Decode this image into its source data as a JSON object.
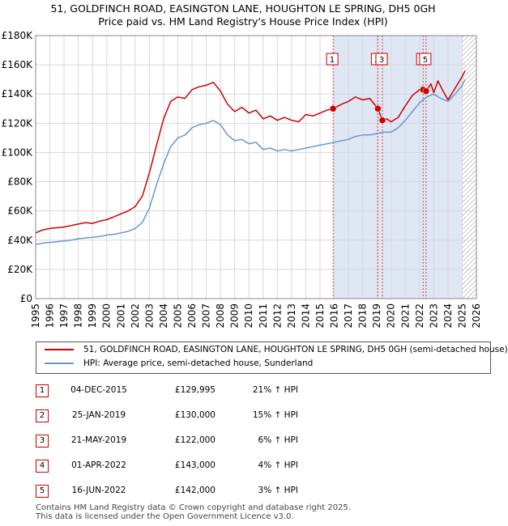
{
  "header": {
    "title": "51, GOLDFINCH ROAD, EASINGTON LANE, HOUGHTON LE SPRING, DH5 0GH",
    "subtitle": "Price paid vs. HM Land Registry's House Price Index (HPI)"
  },
  "legend": {
    "property": "51, GOLDFINCH ROAD, EASINGTON LANE, HOUGHTON LE SPRING, DH5 0GH (semi-detached house)",
    "hpi": "HPI: Average price, semi-detached house, Sunderland"
  },
  "colors": {
    "property": "#cc0000",
    "hpi": "#6699cc",
    "shade": "#dfe6f4",
    "grid": "#d8d8d8",
    "vline": "#cc0000"
  },
  "transactions": [
    {
      "num": "1",
      "date": "04-DEC-2015",
      "price": "£129,995",
      "hpi": "21% ↑ HPI"
    },
    {
      "num": "2",
      "date": "25-JAN-2019",
      "price": "£130,000",
      "hpi": "15% ↑ HPI"
    },
    {
      "num": "3",
      "date": "21-MAY-2019",
      "price": "£122,000",
      "hpi": "6% ↑ HPI"
    },
    {
      "num": "4",
      "date": "01-APR-2022",
      "price": "£143,000",
      "hpi": "4% ↑ HPI"
    },
    {
      "num": "5",
      "date": "16-JUN-2022",
      "price": "£142,000",
      "hpi": "3% ↑ HPI"
    }
  ],
  "footer": {
    "line1": "Contains HM Land Registry data © Crown copyright and database right 2025.",
    "line2": "This data is licensed under the Open Government Licence v3.0."
  },
  "chart_data": {
    "type": "line",
    "xlim": [
      1995,
      2026
    ],
    "ylim": [
      0,
      180000
    ],
    "grid": true,
    "x_ticks": [
      1995,
      1996,
      1997,
      1998,
      1999,
      2000,
      2001,
      2002,
      2003,
      2004,
      2005,
      2006,
      2007,
      2008,
      2009,
      2010,
      2011,
      2012,
      2013,
      2014,
      2015,
      2016,
      2017,
      2018,
      2019,
      2020,
      2021,
      2022,
      2023,
      2024,
      2025,
      2026
    ],
    "y_ticks": [
      0,
      20000,
      40000,
      60000,
      80000,
      100000,
      120000,
      140000,
      160000,
      180000
    ],
    "y_tick_labels": [
      "£0",
      "£20K",
      "£40K",
      "£60K",
      "£80K",
      "£100K",
      "£120K",
      "£140K",
      "£160K",
      "£180K"
    ],
    "shaded_range": [
      2015.92,
      2025.0
    ],
    "hatched_from": 2025.0,
    "markers": [
      {
        "label": "1",
        "x": 2015.92,
        "y": 129995
      },
      {
        "label": "2",
        "x": 2019.07,
        "y": 130000
      },
      {
        "label": "3",
        "x": 2019.39,
        "y": 122000
      },
      {
        "label": "4",
        "x": 2022.25,
        "y": 143000
      },
      {
        "label": "5",
        "x": 2022.46,
        "y": 142000
      }
    ],
    "series": [
      {
        "name": "51, GOLDFINCH ROAD, EASINGTON LANE, HOUGHTON LE SPRING, DH5 0GH (semi-detached house)",
        "x": [
          1995.0,
          1995.5,
          1996.0,
          1996.5,
          1997.0,
          1997.5,
          1998.0,
          1998.5,
          1999.0,
          1999.5,
          2000.0,
          2000.5,
          2001.0,
          2001.5,
          2002.0,
          2002.5,
          2003.0,
          2003.5,
          2004.0,
          2004.5,
          2005.0,
          2005.5,
          2006.0,
          2006.5,
          2007.0,
          2007.5,
          2008.0,
          2008.5,
          2009.0,
          2009.5,
          2010.0,
          2010.5,
          2011.0,
          2011.5,
          2012.0,
          2012.5,
          2013.0,
          2013.5,
          2014.0,
          2014.5,
          2015.0,
          2015.5,
          2015.92,
          2016.5,
          2017.0,
          2017.5,
          2018.0,
          2018.5,
          2019.07,
          2019.39,
          2019.7,
          2020.0,
          2020.5,
          2021.0,
          2021.5,
          2022.0,
          2022.25,
          2022.46,
          2022.8,
          2023.0,
          2023.3,
          2023.6,
          2024.0,
          2024.5,
          2025.0,
          2025.2
        ],
        "values": [
          45000,
          47000,
          48000,
          48500,
          49000,
          50000,
          51000,
          52000,
          51500,
          53000,
          54000,
          56000,
          58000,
          60000,
          63000,
          70000,
          86000,
          105000,
          123000,
          135000,
          138000,
          137000,
          143000,
          145000,
          146000,
          148000,
          142000,
          133000,
          128000,
          131000,
          127000,
          129000,
          123000,
          125000,
          122000,
          124000,
          122000,
          121000,
          126000,
          125000,
          127000,
          129000,
          129995,
          133000,
          135000,
          138000,
          136000,
          137000,
          130000,
          122000,
          123000,
          121000,
          124000,
          132000,
          139000,
          143000,
          143000,
          142000,
          147000,
          141000,
          149000,
          143000,
          136000,
          144000,
          152000,
          156000
        ]
      },
      {
        "name": "HPI: Average price, semi-detached house, Sunderland",
        "x": [
          1995.0,
          1995.5,
          1996.0,
          1996.5,
          1997.0,
          1997.5,
          1998.0,
          1998.5,
          1999.0,
          1999.5,
          2000.0,
          2000.5,
          2001.0,
          2001.5,
          2002.0,
          2002.5,
          2003.0,
          2003.5,
          2004.0,
          2004.5,
          2005.0,
          2005.5,
          2006.0,
          2006.5,
          2007.0,
          2007.5,
          2008.0,
          2008.5,
          2009.0,
          2009.5,
          2010.0,
          2010.5,
          2011.0,
          2011.5,
          2012.0,
          2012.5,
          2013.0,
          2013.5,
          2014.0,
          2014.5,
          2015.0,
          2015.5,
          2016.0,
          2016.5,
          2017.0,
          2017.5,
          2018.0,
          2018.5,
          2019.0,
          2019.5,
          2020.0,
          2020.5,
          2021.0,
          2021.5,
          2022.0,
          2022.5,
          2023.0,
          2023.5,
          2024.0,
          2024.5,
          2025.0,
          2025.2
        ],
        "values": [
          37000,
          38000,
          38500,
          39000,
          39500,
          40000,
          41000,
          41500,
          42000,
          42500,
          43500,
          44000,
          45000,
          46000,
          48000,
          52000,
          62000,
          78000,
          92000,
          104000,
          110000,
          112000,
          117000,
          119000,
          120000,
          122000,
          119000,
          112000,
          108000,
          109000,
          106000,
          107000,
          102000,
          103000,
          101000,
          102000,
          101000,
          102000,
          103000,
          104000,
          105000,
          106000,
          107000,
          108000,
          109000,
          111000,
          112000,
          112000,
          113000,
          114000,
          114000,
          117000,
          122000,
          128000,
          134000,
          138000,
          140000,
          137000,
          135000,
          140000,
          146000,
          150000
        ]
      }
    ]
  }
}
